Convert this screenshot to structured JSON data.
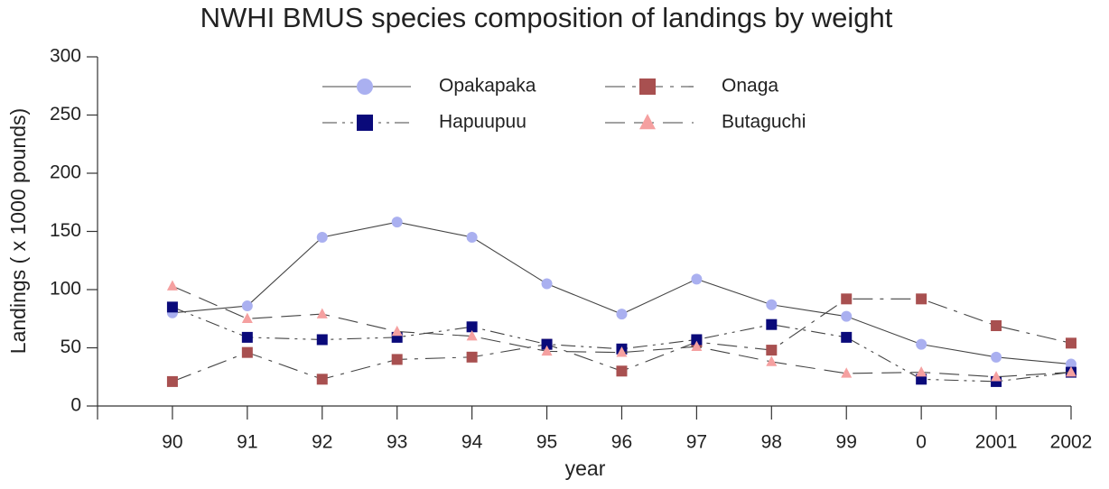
{
  "chart_data": {
    "type": "line",
    "title": "NWHI BMUS species composition of landings by weight",
    "x_label": "year",
    "y_label": "Landings ( x 1000 pounds)",
    "categories": [
      null,
      "90",
      "91",
      "92",
      "93",
      "94",
      "95",
      "96",
      "97",
      "98",
      "99",
      "0",
      "2001",
      "2002"
    ],
    "ylim": [
      0,
      300
    ],
    "yticks": [
      0,
      50,
      100,
      150,
      200,
      250,
      300
    ],
    "grid": false,
    "series": [
      {
        "name": "Opakapaka",
        "color": "#aab0f0",
        "marker": "circle",
        "linestyle": "solid",
        "line_color": "#444444",
        "values": [
          null,
          80,
          86,
          145,
          158,
          145,
          105,
          79,
          109,
          87,
          77,
          53,
          42,
          36
        ]
      },
      {
        "name": "Onaga",
        "color": "#a85050",
        "marker": "square",
        "linestyle": "dashdot",
        "line_color": "#444444",
        "values": [
          null,
          21,
          46,
          23,
          40,
          42,
          53,
          30,
          55,
          48,
          92,
          92,
          69,
          54
        ]
      },
      {
        "name": "Hapuupuu",
        "color": "#0a0a7a",
        "marker": "square",
        "linestyle": "dashdotdot",
        "line_color": "#444444",
        "values": [
          null,
          85,
          59,
          57,
          59,
          68,
          53,
          49,
          57,
          70,
          59,
          23,
          21,
          29
        ]
      },
      {
        "name": "Butaguchi",
        "color": "#f5a0a0",
        "marker": "triangle",
        "linestyle": "longdash",
        "line_color": "#444444",
        "values": [
          null,
          103,
          75,
          79,
          64,
          60,
          47,
          46,
          51,
          38,
          28,
          29,
          25,
          29
        ]
      }
    ]
  }
}
